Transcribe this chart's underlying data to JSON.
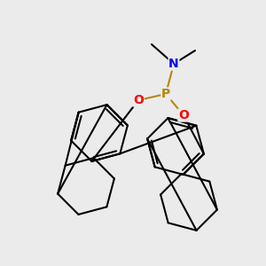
{
  "bg_color": "#ebebeb",
  "atom_colors": {
    "P": "#b8860b",
    "O": "#ff0000",
    "N": "#0000ff",
    "C": "#1a1a1a"
  },
  "figsize": [
    3.0,
    3.0
  ],
  "dpi": 100
}
